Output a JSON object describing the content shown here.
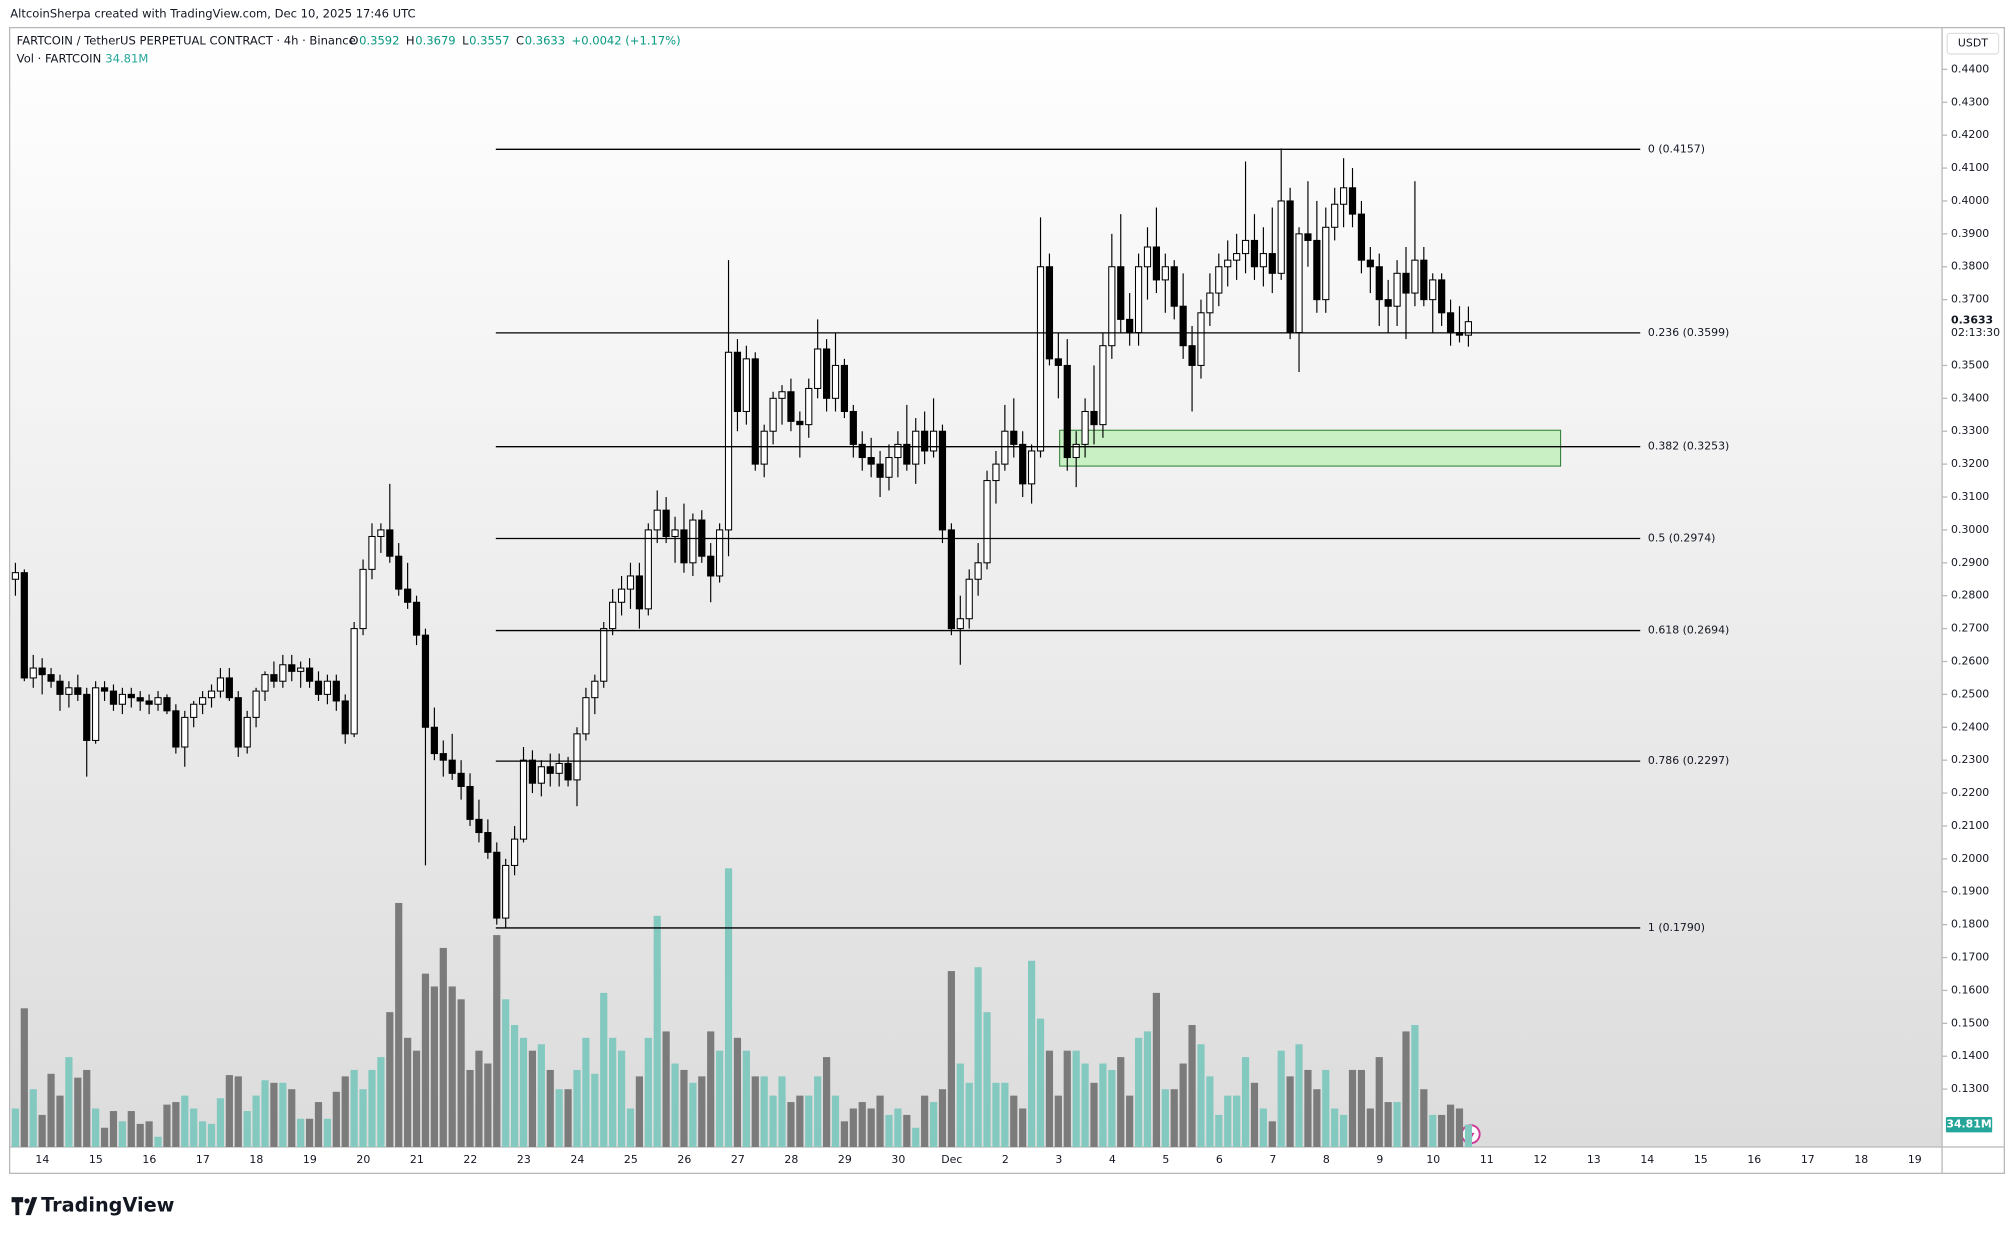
{
  "header": {
    "credit": "AltcoinSherpa created with TradingView.com, Dec 10, 2025 17:46 UTC",
    "symbol": "FARTCOIN / TetherUS PERPETUAL CONTRACT · 4h · Binance",
    "ohlc": [
      {
        "label": "O",
        "value": "0.3592"
      },
      {
        "label": "H",
        "value": "0.3679"
      },
      {
        "label": "L",
        "value": "0.3557"
      },
      {
        "label": "C",
        "value": "0.3633"
      },
      {
        "label": "",
        "value": "+0.0042 (+1.17%)"
      }
    ],
    "vol_name": "Vol · FARTCOIN",
    "axis_unit": "USDT"
  },
  "footer": {
    "brand": "TradingView"
  },
  "chart_data": {
    "type": "candlestick",
    "ylim": [
      0.1124,
      0.4525
    ],
    "yticks": [
      {
        "value": 0.44,
        "label": "0.4400"
      },
      {
        "value": 0.43,
        "label": "0.4300"
      },
      {
        "value": 0.42,
        "label": "0.4200"
      },
      {
        "value": 0.41,
        "label": "0.4100"
      },
      {
        "value": 0.4,
        "label": "0.4000"
      },
      {
        "value": 0.39,
        "label": "0.3900"
      },
      {
        "value": 0.38,
        "label": "0.3800"
      },
      {
        "value": 0.37,
        "label": "0.3700"
      },
      {
        "value": 0.35,
        "label": "0.3500"
      },
      {
        "value": 0.34,
        "label": "0.3400"
      },
      {
        "value": 0.33,
        "label": "0.3300"
      },
      {
        "value": 0.32,
        "label": "0.3200"
      },
      {
        "value": 0.31,
        "label": "0.3100"
      },
      {
        "value": 0.3,
        "label": "0.3000"
      },
      {
        "value": 0.29,
        "label": "0.2900"
      },
      {
        "value": 0.28,
        "label": "0.2800"
      },
      {
        "value": 0.27,
        "label": "0.2700"
      },
      {
        "value": 0.26,
        "label": "0.2600"
      },
      {
        "value": 0.25,
        "label": "0.2500"
      },
      {
        "value": 0.24,
        "label": "0.2400"
      },
      {
        "value": 0.23,
        "label": "0.2300"
      },
      {
        "value": 0.22,
        "label": "0.2200"
      },
      {
        "value": 0.21,
        "label": "0.2100"
      },
      {
        "value": 0.2,
        "label": "0.2000"
      },
      {
        "value": 0.19,
        "label": "0.1900"
      },
      {
        "value": 0.18,
        "label": "0.1800"
      },
      {
        "value": 0.17,
        "label": "0.1700"
      },
      {
        "value": 0.16,
        "label": "0.1600"
      },
      {
        "value": 0.15,
        "label": "0.1500"
      },
      {
        "value": 0.14,
        "label": "0.1400"
      },
      {
        "value": 0.13,
        "label": "0.1300"
      }
    ],
    "xticks": [
      "14",
      "15",
      "16",
      "17",
      "18",
      "19",
      "20",
      "21",
      "22",
      "23",
      "24",
      "25",
      "26",
      "27",
      "28",
      "29",
      "30",
      "Dec",
      "2",
      "3",
      "4",
      "5",
      "6",
      "7",
      "8",
      "9",
      "10",
      "11",
      "12",
      "13",
      "14",
      "15",
      "16",
      "17",
      "18",
      "19"
    ],
    "ohlc": [
      [
        0.285,
        0.29,
        0.28,
        0.287
      ],
      [
        0.287,
        0.288,
        0.254,
        0.255
      ],
      [
        0.255,
        0.262,
        0.252,
        0.258
      ],
      [
        0.258,
        0.261,
        0.25,
        0.256
      ],
      [
        0.256,
        0.258,
        0.252,
        0.254
      ],
      [
        0.254,
        0.256,
        0.245,
        0.25
      ],
      [
        0.25,
        0.254,
        0.246,
        0.252
      ],
      [
        0.252,
        0.256,
        0.248,
        0.25
      ],
      [
        0.25,
        0.252,
        0.225,
        0.236
      ],
      [
        0.236,
        0.254,
        0.235,
        0.252
      ],
      [
        0.252,
        0.254,
        0.248,
        0.251
      ],
      [
        0.251,
        0.253,
        0.245,
        0.247
      ],
      [
        0.247,
        0.252,
        0.244,
        0.25
      ],
      [
        0.25,
        0.252,
        0.246,
        0.249
      ],
      [
        0.249,
        0.251,
        0.245,
        0.248
      ],
      [
        0.248,
        0.25,
        0.244,
        0.247
      ],
      [
        0.247,
        0.251,
        0.245,
        0.249
      ],
      [
        0.249,
        0.25,
        0.244,
        0.245
      ],
      [
        0.245,
        0.247,
        0.232,
        0.234
      ],
      [
        0.234,
        0.245,
        0.228,
        0.243
      ],
      [
        0.243,
        0.248,
        0.24,
        0.247
      ],
      [
        0.247,
        0.251,
        0.244,
        0.249
      ],
      [
        0.249,
        0.253,
        0.246,
        0.251
      ],
      [
        0.251,
        0.258,
        0.249,
        0.255
      ],
      [
        0.255,
        0.258,
        0.248,
        0.249
      ],
      [
        0.249,
        0.251,
        0.231,
        0.234
      ],
      [
        0.234,
        0.245,
        0.232,
        0.243
      ],
      [
        0.243,
        0.252,
        0.24,
        0.251
      ],
      [
        0.251,
        0.257,
        0.248,
        0.256
      ],
      [
        0.256,
        0.26,
        0.252,
        0.254
      ],
      [
        0.254,
        0.262,
        0.252,
        0.259
      ],
      [
        0.259,
        0.262,
        0.254,
        0.257
      ],
      [
        0.257,
        0.26,
        0.252,
        0.258
      ],
      [
        0.258,
        0.261,
        0.252,
        0.254
      ],
      [
        0.254,
        0.257,
        0.248,
        0.25
      ],
      [
        0.25,
        0.256,
        0.247,
        0.254
      ],
      [
        0.254,
        0.256,
        0.245,
        0.248
      ],
      [
        0.248,
        0.25,
        0.235,
        0.238
      ],
      [
        0.238,
        0.272,
        0.237,
        0.27
      ],
      [
        0.27,
        0.291,
        0.268,
        0.288
      ],
      [
        0.288,
        0.302,
        0.285,
        0.298
      ],
      [
        0.298,
        0.302,
        0.293,
        0.3
      ],
      [
        0.3,
        0.314,
        0.29,
        0.292
      ],
      [
        0.292,
        0.296,
        0.28,
        0.282
      ],
      [
        0.282,
        0.29,
        0.276,
        0.278
      ],
      [
        0.278,
        0.28,
        0.265,
        0.268
      ],
      [
        0.268,
        0.27,
        0.198,
        0.24
      ],
      [
        0.24,
        0.246,
        0.23,
        0.232
      ],
      [
        0.232,
        0.236,
        0.225,
        0.23
      ],
      [
        0.23,
        0.238,
        0.224,
        0.226
      ],
      [
        0.226,
        0.23,
        0.218,
        0.222
      ],
      [
        0.222,
        0.226,
        0.21,
        0.212
      ],
      [
        0.212,
        0.218,
        0.205,
        0.208
      ],
      [
        0.208,
        0.212,
        0.2,
        0.202
      ],
      [
        0.202,
        0.205,
        0.18,
        0.182
      ],
      [
        0.182,
        0.2,
        0.179,
        0.198
      ],
      [
        0.198,
        0.21,
        0.195,
        0.206
      ],
      [
        0.206,
        0.234,
        0.205,
        0.23
      ],
      [
        0.23,
        0.233,
        0.22,
        0.223
      ],
      [
        0.223,
        0.23,
        0.219,
        0.228
      ],
      [
        0.228,
        0.232,
        0.222,
        0.226
      ],
      [
        0.226,
        0.232,
        0.222,
        0.229
      ],
      [
        0.229,
        0.231,
        0.222,
        0.224
      ],
      [
        0.224,
        0.24,
        0.216,
        0.238
      ],
      [
        0.238,
        0.252,
        0.236,
        0.249
      ],
      [
        0.249,
        0.256,
        0.244,
        0.254
      ],
      [
        0.254,
        0.272,
        0.252,
        0.27
      ],
      [
        0.27,
        0.282,
        0.268,
        0.278
      ],
      [
        0.278,
        0.286,
        0.274,
        0.282
      ],
      [
        0.282,
        0.29,
        0.276,
        0.286
      ],
      [
        0.286,
        0.29,
        0.27,
        0.276
      ],
      [
        0.276,
        0.302,
        0.274,
        0.3
      ],
      [
        0.3,
        0.312,
        0.296,
        0.306
      ],
      [
        0.306,
        0.31,
        0.296,
        0.298
      ],
      [
        0.298,
        0.304,
        0.29,
        0.3
      ],
      [
        0.3,
        0.308,
        0.287,
        0.29
      ],
      [
        0.29,
        0.305,
        0.286,
        0.303
      ],
      [
        0.303,
        0.306,
        0.29,
        0.292
      ],
      [
        0.292,
        0.296,
        0.278,
        0.286
      ],
      [
        0.286,
        0.302,
        0.284,
        0.3
      ],
      [
        0.3,
        0.382,
        0.292,
        0.354
      ],
      [
        0.354,
        0.358,
        0.33,
        0.336
      ],
      [
        0.336,
        0.356,
        0.332,
        0.352
      ],
      [
        0.352,
        0.354,
        0.318,
        0.32
      ],
      [
        0.32,
        0.332,
        0.316,
        0.33
      ],
      [
        0.33,
        0.342,
        0.326,
        0.34
      ],
      [
        0.34,
        0.344,
        0.332,
        0.342
      ],
      [
        0.342,
        0.346,
        0.33,
        0.333
      ],
      [
        0.333,
        0.336,
        0.322,
        0.332
      ],
      [
        0.332,
        0.346,
        0.328,
        0.343
      ],
      [
        0.343,
        0.364,
        0.34,
        0.355
      ],
      [
        0.355,
        0.358,
        0.336,
        0.34
      ],
      [
        0.34,
        0.36,
        0.336,
        0.35
      ],
      [
        0.35,
        0.352,
        0.334,
        0.336
      ],
      [
        0.336,
        0.338,
        0.322,
        0.326
      ],
      [
        0.326,
        0.33,
        0.318,
        0.322
      ],
      [
        0.322,
        0.328,
        0.316,
        0.32
      ],
      [
        0.32,
        0.324,
        0.31,
        0.316
      ],
      [
        0.316,
        0.326,
        0.312,
        0.322
      ],
      [
        0.322,
        0.33,
        0.316,
        0.326
      ],
      [
        0.326,
        0.338,
        0.318,
        0.32
      ],
      [
        0.32,
        0.334,
        0.314,
        0.33
      ],
      [
        0.33,
        0.336,
        0.32,
        0.324
      ],
      [
        0.324,
        0.34,
        0.322,
        0.33
      ],
      [
        0.33,
        0.332,
        0.296,
        0.3
      ],
      [
        0.3,
        0.302,
        0.268,
        0.27
      ],
      [
        0.27,
        0.28,
        0.259,
        0.273
      ],
      [
        0.273,
        0.288,
        0.27,
        0.285
      ],
      [
        0.285,
        0.296,
        0.28,
        0.29
      ],
      [
        0.29,
        0.318,
        0.288,
        0.315
      ],
      [
        0.315,
        0.324,
        0.308,
        0.32
      ],
      [
        0.32,
        0.338,
        0.318,
        0.33
      ],
      [
        0.33,
        0.34,
        0.322,
        0.326
      ],
      [
        0.326,
        0.33,
        0.31,
        0.314
      ],
      [
        0.314,
        0.326,
        0.308,
        0.324
      ],
      [
        0.324,
        0.395,
        0.322,
        0.38
      ],
      [
        0.38,
        0.384,
        0.35,
        0.352
      ],
      [
        0.352,
        0.36,
        0.34,
        0.35
      ],
      [
        0.35,
        0.358,
        0.318,
        0.322
      ],
      [
        0.322,
        0.33,
        0.313,
        0.326
      ],
      [
        0.326,
        0.34,
        0.322,
        0.336
      ],
      [
        0.336,
        0.35,
        0.326,
        0.332
      ],
      [
        0.332,
        0.36,
        0.328,
        0.356
      ],
      [
        0.356,
        0.39,
        0.352,
        0.38
      ],
      [
        0.38,
        0.396,
        0.36,
        0.364
      ],
      [
        0.364,
        0.372,
        0.356,
        0.36
      ],
      [
        0.36,
        0.384,
        0.356,
        0.38
      ],
      [
        0.38,
        0.392,
        0.37,
        0.386
      ],
      [
        0.386,
        0.398,
        0.372,
        0.376
      ],
      [
        0.376,
        0.384,
        0.366,
        0.38
      ],
      [
        0.38,
        0.382,
        0.364,
        0.368
      ],
      [
        0.368,
        0.378,
        0.352,
        0.356
      ],
      [
        0.356,
        0.362,
        0.336,
        0.35
      ],
      [
        0.35,
        0.37,
        0.346,
        0.366
      ],
      [
        0.366,
        0.378,
        0.362,
        0.372
      ],
      [
        0.372,
        0.384,
        0.368,
        0.38
      ],
      [
        0.38,
        0.388,
        0.374,
        0.382
      ],
      [
        0.382,
        0.39,
        0.376,
        0.384
      ],
      [
        0.384,
        0.412,
        0.378,
        0.388
      ],
      [
        0.388,
        0.396,
        0.376,
        0.38
      ],
      [
        0.38,
        0.392,
        0.374,
        0.384
      ],
      [
        0.384,
        0.398,
        0.372,
        0.378
      ],
      [
        0.378,
        0.416,
        0.376,
        0.4
      ],
      [
        0.4,
        0.404,
        0.358,
        0.36
      ],
      [
        0.36,
        0.392,
        0.348,
        0.39
      ],
      [
        0.39,
        0.406,
        0.38,
        0.388
      ],
      [
        0.388,
        0.4,
        0.366,
        0.37
      ],
      [
        0.37,
        0.398,
        0.366,
        0.392
      ],
      [
        0.392,
        0.404,
        0.388,
        0.399
      ],
      [
        0.399,
        0.413,
        0.392,
        0.404
      ],
      [
        0.404,
        0.41,
        0.392,
        0.396
      ],
      [
        0.396,
        0.4,
        0.378,
        0.382
      ],
      [
        0.382,
        0.386,
        0.372,
        0.38
      ],
      [
        0.38,
        0.384,
        0.362,
        0.37
      ],
      [
        0.37,
        0.376,
        0.36,
        0.368
      ],
      [
        0.368,
        0.382,
        0.362,
        0.378
      ],
      [
        0.378,
        0.386,
        0.358,
        0.372
      ],
      [
        0.372,
        0.406,
        0.368,
        0.382
      ],
      [
        0.382,
        0.386,
        0.368,
        0.37
      ],
      [
        0.37,
        0.378,
        0.36,
        0.376
      ],
      [
        0.376,
        0.378,
        0.362,
        0.366
      ],
      [
        0.366,
        0.37,
        0.356,
        0.36
      ],
      [
        0.36,
        0.368,
        0.357,
        0.3592
      ],
      [
        0.3592,
        0.3679,
        0.3557,
        0.3633
      ]
    ],
    "volume": [
      60,
      216,
      90,
      50,
      114,
      80,
      140,
      108,
      120,
      60,
      30,
      56,
      40,
      56,
      36,
      40,
      16,
      66,
      70,
      80,
      60,
      40,
      36,
      76,
      112,
      110,
      56,
      80,
      104,
      100,
      100,
      90,
      44,
      44,
      70,
      44,
      86,
      110,
      120,
      90,
      120,
      140,
      210,
      380,
      170,
      150,
      270,
      250,
      310,
      250,
      230,
      120,
      150,
      130,
      330,
      230,
      190,
      170,
      150,
      160,
      120,
      90,
      90,
      120,
      170,
      114,
      240,
      170,
      150,
      60,
      110,
      170,
      360,
      180,
      130,
      120,
      100,
      110,
      180,
      150,
      434,
      170,
      150,
      110,
      110,
      80,
      110,
      70,
      80,
      80,
      110,
      140,
      80,
      40,
      60,
      70,
      60,
      80,
      50,
      60,
      50,
      30,
      80,
      70,
      90,
      274,
      130,
      100,
      280,
      210,
      100,
      100,
      80,
      60,
      290,
      200,
      150,
      80,
      150,
      150,
      130,
      100,
      130,
      120,
      140,
      80,
      170,
      180,
      240,
      90,
      90,
      130,
      190,
      160,
      110,
      50,
      80,
      80,
      140,
      100,
      60,
      40,
      150,
      110,
      160,
      120,
      90,
      120,
      60,
      50,
      120,
      120,
      60,
      140,
      70,
      70,
      180,
      190,
      90,
      50,
      50,
      66,
      60,
      34.81
    ],
    "volume_label": "34.81M",
    "fib": [
      {
        "value": 0.4157,
        "label": "0 (0.4157)"
      },
      {
        "value": 0.3599,
        "label": "0.236 (0.3599)"
      },
      {
        "value": 0.3253,
        "label": "0.382 (0.3253)"
      },
      {
        "value": 0.2974,
        "label": "0.5 (0.2974)"
      },
      {
        "value": 0.2694,
        "label": "0.618 (0.2694)"
      },
      {
        "value": 0.2297,
        "label": "0.786 (0.2297)"
      },
      {
        "value": 0.179,
        "label": "1 (0.1790)"
      }
    ],
    "zone": [
      0.3194,
      0.3303
    ],
    "last_price": {
      "value": 0.3633,
      "label": "0.3633"
    },
    "countdown": "02:13:30",
    "colors": {
      "up": "#ffffff",
      "down": "#000000",
      "volume_up": "#84c9c0",
      "volume_down": "#7b7b7b",
      "zone": "#c8f0c4",
      "last": "#131722",
      "accent": "#089981"
    }
  }
}
